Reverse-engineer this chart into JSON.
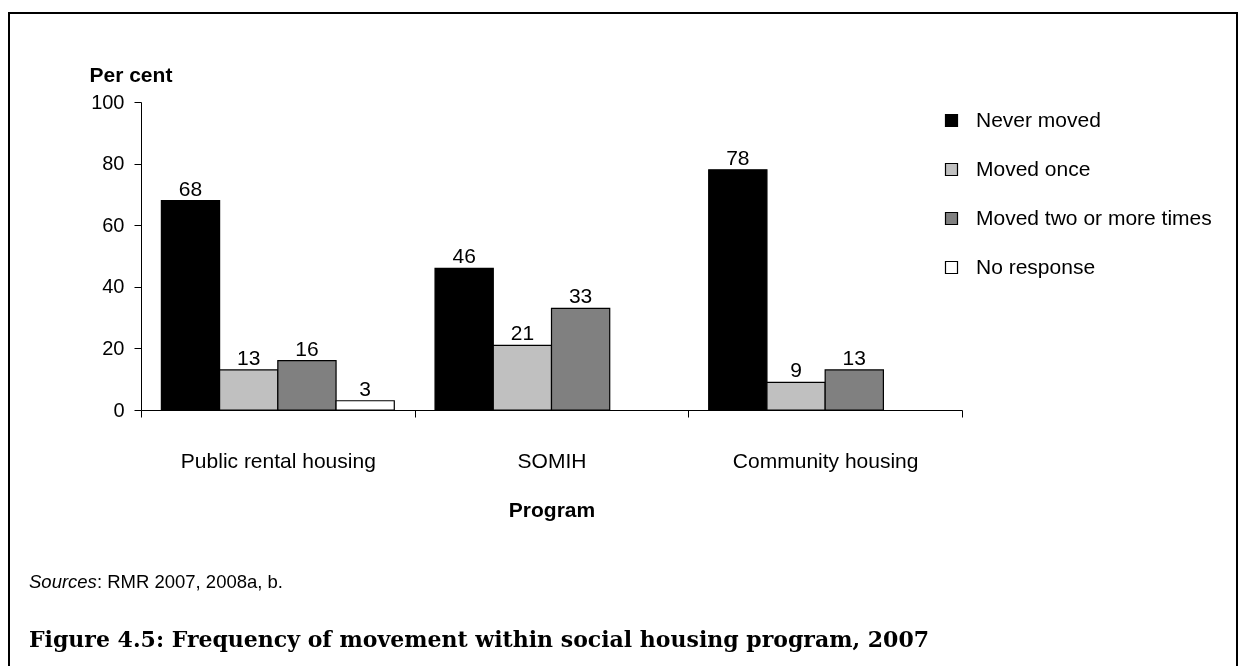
{
  "chart_data": {
    "type": "bar",
    "title": "Figure 4.5: Frequency of movement within social housing program, 2007",
    "xlabel": "Program",
    "ylabel": "Per cent",
    "categories": [
      "Public rental housing",
      "SOMIH",
      "Community housing"
    ],
    "series": [
      {
        "name": "Never moved",
        "color": "#000000",
        "values": [
          68,
          46,
          78
        ]
      },
      {
        "name": "Moved once",
        "color": "#c0c0c0",
        "values": [
          13,
          21,
          9
        ]
      },
      {
        "name": "Moved two or more times",
        "color": "#808080",
        "values": [
          16,
          33,
          13
        ]
      },
      {
        "name": "No response",
        "color": "#ffffff",
        "values": [
          3,
          null,
          null
        ]
      }
    ],
    "ylim": [
      0,
      100
    ],
    "yticks": [
      0,
      20,
      40,
      60,
      80,
      100
    ],
    "data_labels": true,
    "legend": "top right",
    "annotations": [
      "Sources: RMR 2007, 2008a, b."
    ]
  }
}
